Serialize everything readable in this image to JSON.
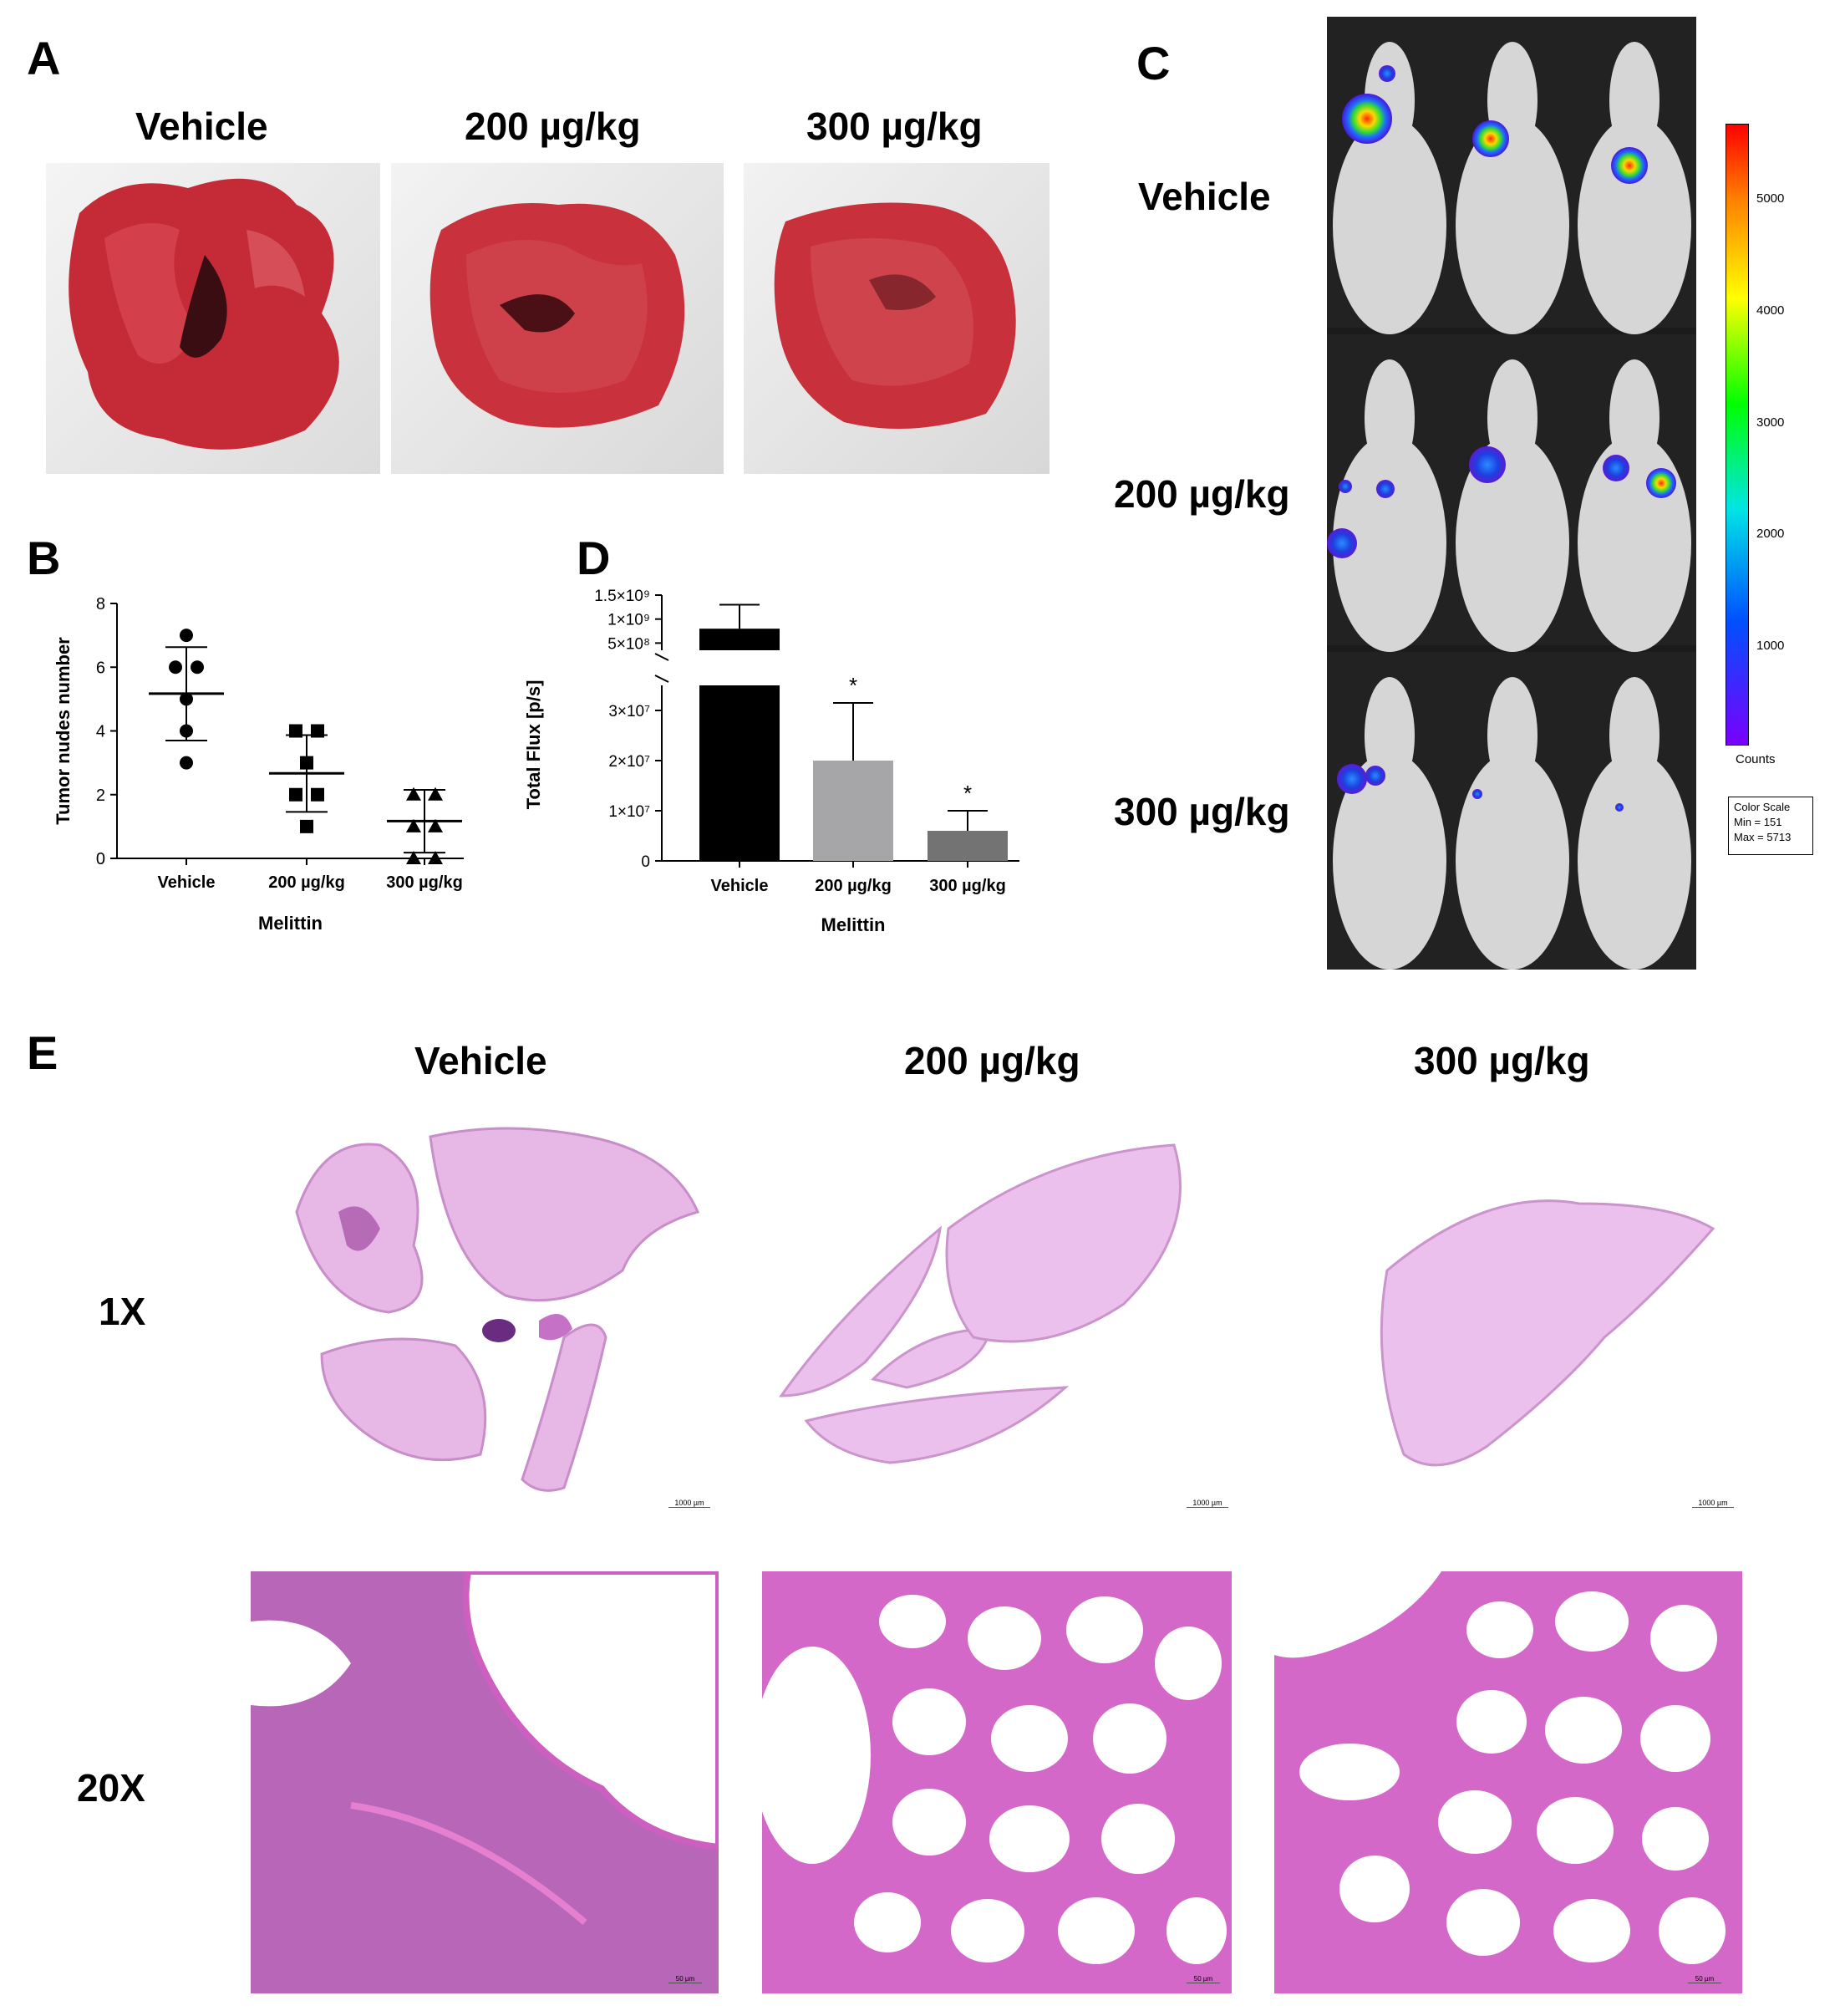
{
  "panels": {
    "a": {
      "letter": "A",
      "groups": [
        "Vehicle",
        "200 µg/kg",
        "300 µg/kg"
      ]
    },
    "b": {
      "letter": "B"
    },
    "c": {
      "letter": "C",
      "groups": [
        "Vehicle",
        "200 µg/kg",
        "300 µg/kg"
      ],
      "colorbar_ticks": [
        "5000",
        "4000",
        "3000",
        "2000",
        "1000"
      ],
      "colorbar_label": "Counts",
      "scale_box": [
        "Color Scale",
        "Min = 151",
        "Max = 5713"
      ]
    },
    "d": {
      "letter": "D"
    },
    "e": {
      "letter": "E",
      "groups": [
        "Vehicle",
        "200 µg/kg",
        "300 µg/kg"
      ],
      "rows": [
        "1X",
        "20X"
      ],
      "scalebar_1x": "1000 µm",
      "scalebar_20x": "50 µm"
    }
  },
  "colors": {
    "tissue_red": "#c8323c",
    "he_pink": "#d68fd0",
    "he_purple": "#8a3f9a",
    "bar_vehicle": "#000000",
    "bar_200": "#a6a6a8",
    "bar_300": "#737373"
  },
  "chart_data": [
    {
      "type": "scatter",
      "panel": "B",
      "categories": [
        "Vehicle",
        "200 µg/kg",
        "300 µg/kg"
      ],
      "xlabel": "Melittin",
      "ylabel": "Tumor nudes number",
      "ylim": [
        0,
        8
      ],
      "yticks": [
        "0",
        "2",
        "4",
        "6",
        "8"
      ],
      "series": [
        {
          "marker": "circle",
          "values": [
            7,
            6,
            6,
            5,
            4,
            3
          ],
          "mean": 5.17,
          "sd_low": 3.7,
          "sd_high": 6.63
        },
        {
          "marker": "square",
          "values": [
            4,
            4,
            3,
            2,
            2,
            1
          ],
          "mean": 2.67,
          "sd_low": 1.46,
          "sd_high": 3.87
        },
        {
          "marker": "triangle",
          "values": [
            2,
            2,
            1,
            1,
            0,
            0
          ],
          "mean": 1.17,
          "sd_low": 0.18,
          "sd_high": 2.15
        }
      ]
    },
    {
      "type": "bar",
      "panel": "D",
      "categories": [
        "Vehicle",
        "200 µg/kg",
        "300 µg/kg"
      ],
      "values": [
        800000000,
        20000000,
        6000000
      ],
      "errors_upper": [
        1300000000,
        31500000,
        10000000
      ],
      "annotations": [
        "",
        "*",
        "*"
      ],
      "xlabel": "Melittin",
      "ylabel": "Total Flux [p/s]",
      "ylim_lower": [
        0,
        35000000
      ],
      "ylim_upper": [
        350000000,
        1500000000
      ],
      "yticks_lower": [
        "0",
        "1×10⁷",
        "2×10⁷",
        "3×10⁷"
      ],
      "yticks_upper": [
        "5×10⁸",
        "1×10⁹",
        "1.5×10⁹"
      ],
      "broken_axis": true
    }
  ]
}
